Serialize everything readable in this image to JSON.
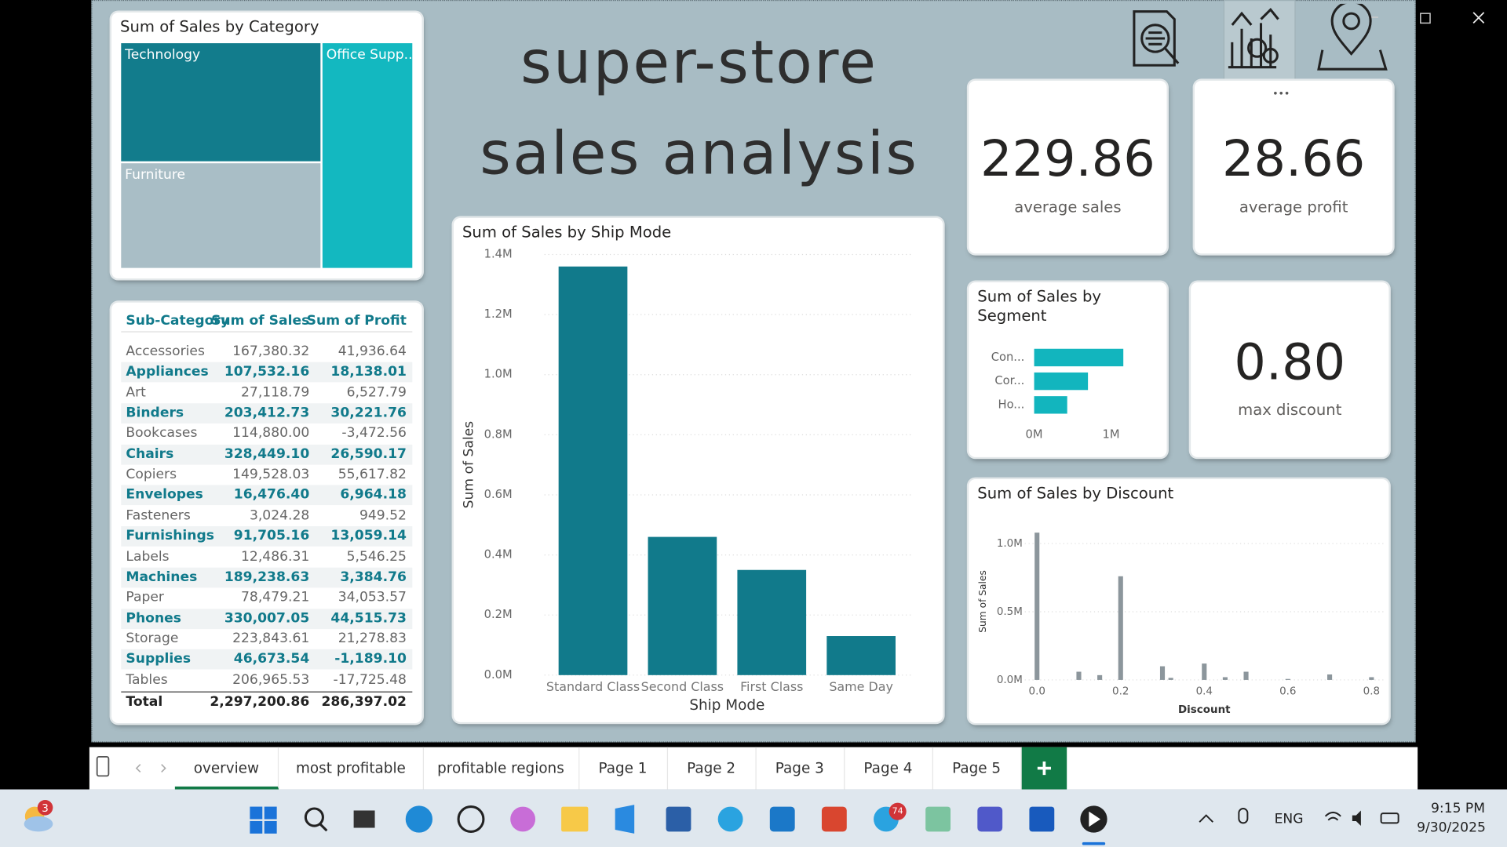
{
  "title": [
    "super-store",
    "sales analysis"
  ],
  "kpis": [
    {
      "value": "229.86",
      "label": "average sales"
    },
    {
      "value": "28.66",
      "label": "average profit"
    },
    {
      "value": "0.80",
      "label": "max discount"
    }
  ],
  "table": {
    "header": [
      "Sub-Category",
      "Sum of Sales",
      "Sum of Profit"
    ],
    "rows": [
      [
        "Accessories",
        "167,380.32",
        "41,936.64"
      ],
      [
        "Appliances",
        "107,532.16",
        "18,138.01"
      ],
      [
        "Art",
        "27,118.79",
        "6,527.79"
      ],
      [
        "Binders",
        "203,412.73",
        "30,221.76"
      ],
      [
        "Bookcases",
        "114,880.00",
        "-3,472.56"
      ],
      [
        "Chairs",
        "328,449.10",
        "26,590.17"
      ],
      [
        "Copiers",
        "149,528.03",
        "55,617.82"
      ],
      [
        "Envelopes",
        "16,476.40",
        "6,964.18"
      ],
      [
        "Fasteners",
        "3,024.28",
        "949.52"
      ],
      [
        "Furnishings",
        "91,705.16",
        "13,059.14"
      ],
      [
        "Labels",
        "12,486.31",
        "5,546.25"
      ],
      [
        "Machines",
        "189,238.63",
        "3,384.76"
      ],
      [
        "Paper",
        "78,479.21",
        "34,053.57"
      ],
      [
        "Phones",
        "330,007.05",
        "44,515.73"
      ],
      [
        "Storage",
        "223,843.61",
        "21,278.83"
      ],
      [
        "Supplies",
        "46,673.54",
        "-1,189.10"
      ],
      [
        "Tables",
        "206,965.53",
        "-17,725.48"
      ]
    ],
    "total": [
      "Total",
      "2,297,200.86",
      "286,397.02"
    ]
  },
  "tabs": [
    "overview",
    "most profitable",
    "profitable regions",
    "Page 1",
    "Page 2",
    "Page 3",
    "Page 4",
    "Page 5"
  ],
  "taskbar": {
    "weather_badge": "3",
    "telegram_badge": "74",
    "language": "ENG",
    "time": "9:15 PM",
    "date": "9/30/2025"
  },
  "chart_data": [
    {
      "type": "treemap",
      "title": "Sum of Sales by Category",
      "categories": [
        "Technology",
        "Furniture",
        "Office Supp..."
      ],
      "values": [
        836000,
        742000,
        719000
      ],
      "colors": [
        "#127c8c",
        "#a9bec6",
        "#13b8c0"
      ]
    },
    {
      "type": "bar",
      "title": "Sum of Sales by Ship Mode",
      "x_label": "Ship Mode",
      "y_label": "Sum of Sales",
      "categories": [
        "Standard Class",
        "Second Class",
        "First Class",
        "Same Day"
      ],
      "values": [
        1360000,
        460000,
        350000,
        130000
      ],
      "color": "#117a8b",
      "ylim": [
        0,
        1400000
      ],
      "yticks": [
        {
          "value": 0,
          "label": "0.0M"
        },
        {
          "value": 200000,
          "label": "0.2M"
        },
        {
          "value": 400000,
          "label": "0.4M"
        },
        {
          "value": 600000,
          "label": "0.6M"
        },
        {
          "value": 800000,
          "label": "0.8M"
        },
        {
          "value": 1000000,
          "label": "1.0M"
        },
        {
          "value": 1200000,
          "label": "1.2M"
        },
        {
          "value": 1400000,
          "label": "1.4M"
        }
      ],
      "grid": true
    },
    {
      "type": "bar",
      "orientation": "horizontal",
      "title": "Sum of Sales by Segment",
      "categories": [
        "Con...",
        "Cor...",
        "Ho..."
      ],
      "values": [
        1160000,
        700000,
        430000
      ],
      "color": "#12b5be",
      "xlim": [
        0,
        1250000
      ],
      "xticks": [
        {
          "value": 0,
          "label": "0M"
        },
        {
          "value": 1000000,
          "label": "1M"
        }
      ]
    },
    {
      "type": "bar",
      "title": "Sum of Sales by Discount",
      "x_label": "Discount",
      "y_label": "Sum of Sales",
      "x": [
        0,
        0.1,
        0.15,
        0.2,
        0.3,
        0.32,
        0.4,
        0.45,
        0.5,
        0.6,
        0.7,
        0.8
      ],
      "values": [
        1080000,
        60000,
        35000,
        760000,
        100000,
        15000,
        120000,
        20000,
        60000,
        7000,
        40000,
        20000
      ],
      "color": "#8c969c",
      "xlim": [
        -0.02,
        0.82
      ],
      "xticks": [
        {
          "value": 0,
          "label": "0.0"
        },
        0.2,
        0.4,
        0.6,
        0.8
      ],
      "ylim": [
        0,
        1150000
      ],
      "yticks": [
        {
          "value": 0,
          "label": "0.0M"
        },
        {
          "value": 500000,
          "label": "0.5M"
        },
        {
          "value": 1000000,
          "label": "1.0M"
        }
      ],
      "grid": true
    }
  ]
}
